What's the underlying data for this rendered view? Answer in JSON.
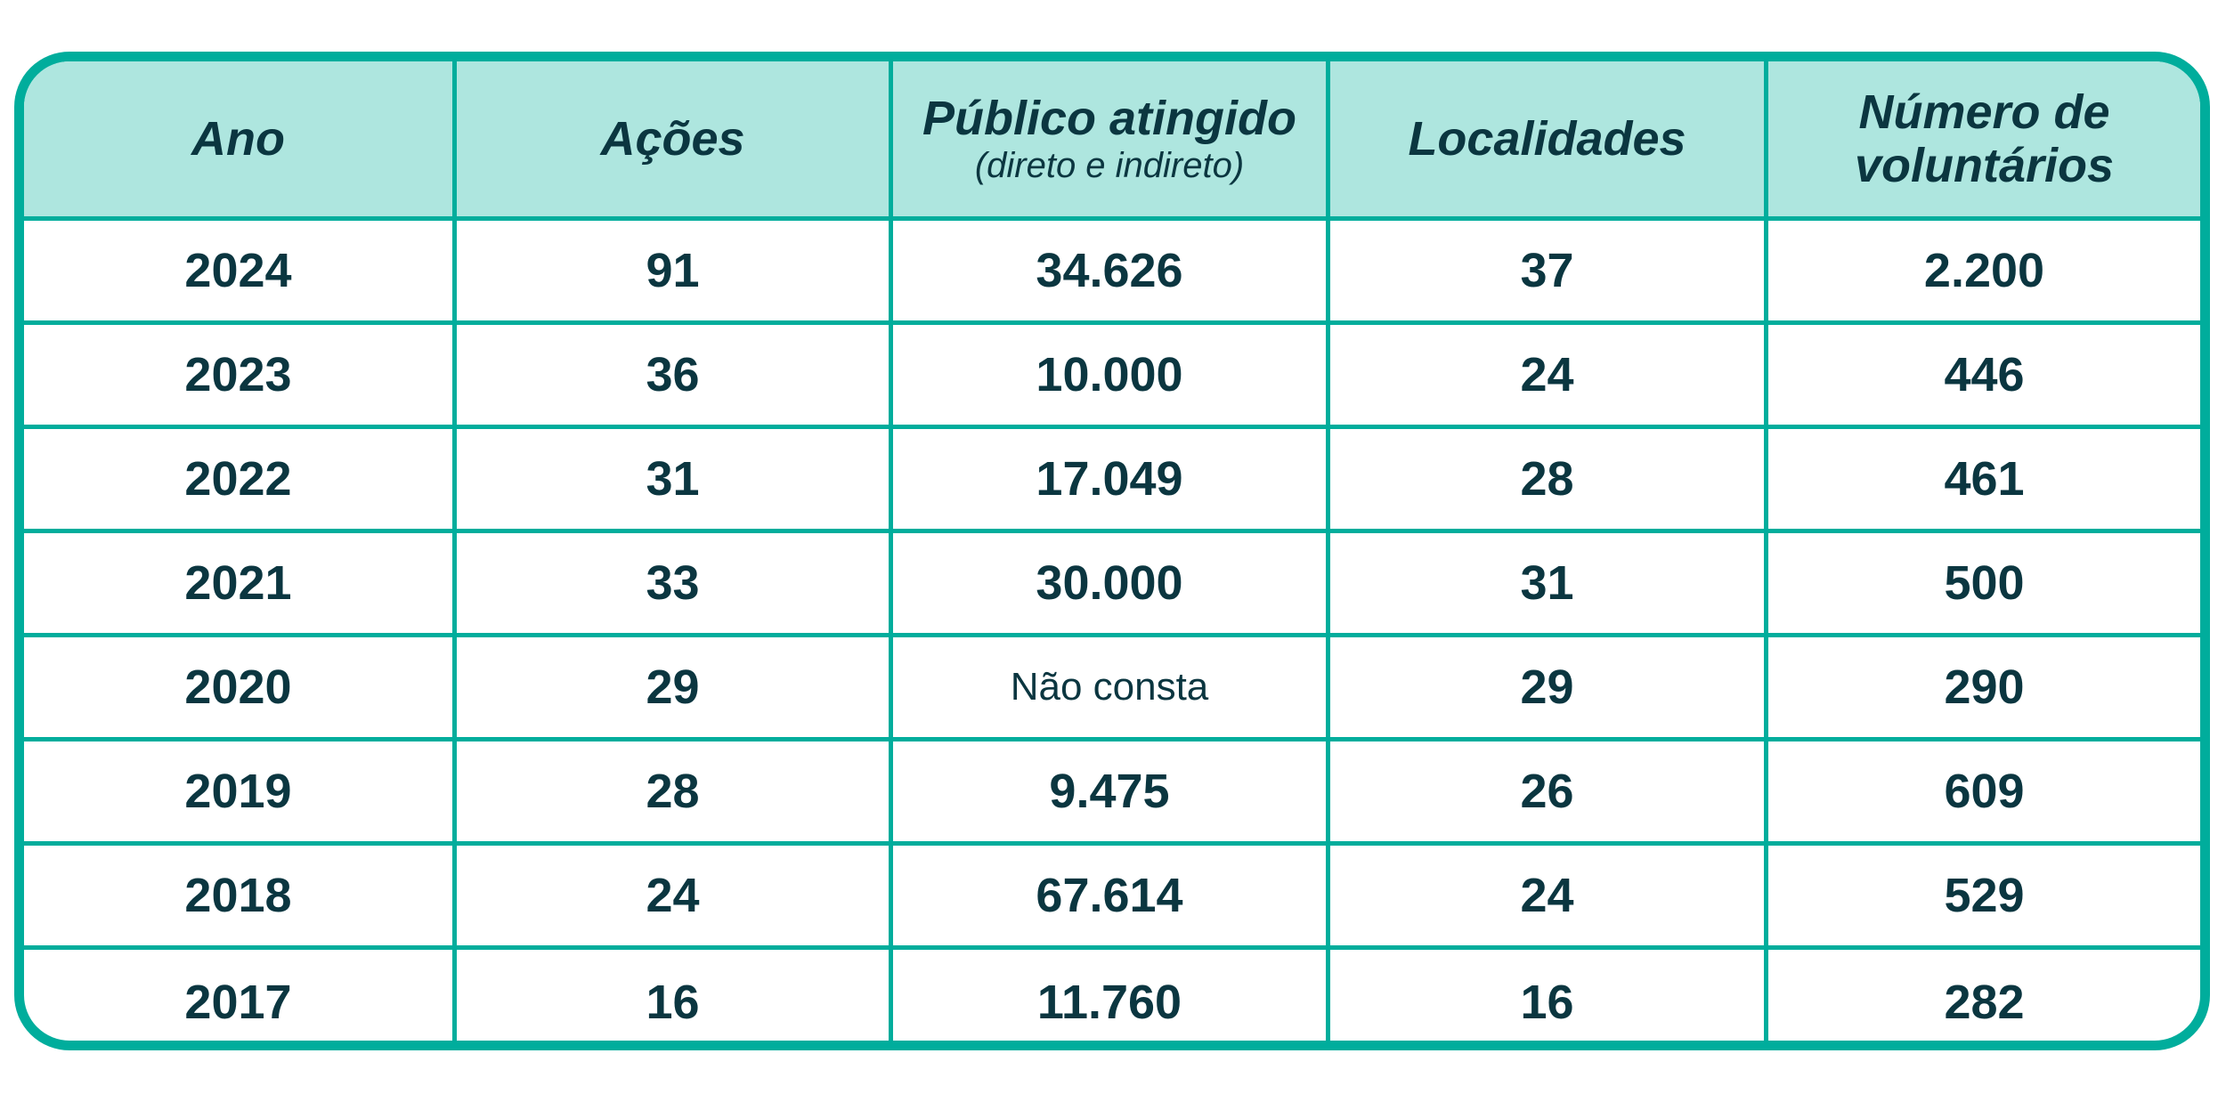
{
  "colors": {
    "border": "#00ad9c",
    "header_bg": "#aee6df",
    "text": "#0b3640"
  },
  "headers": [
    {
      "label": "Ano"
    },
    {
      "label": "Ações"
    },
    {
      "label": "Público atingido",
      "sub": "(direto e indireto)"
    },
    {
      "label": "Localidades"
    },
    {
      "label": "Número de voluntários"
    }
  ],
  "rows": [
    [
      "2024",
      "91",
      "34.626",
      "37",
      "2.200"
    ],
    [
      "2023",
      "36",
      "10.000",
      "24",
      "446"
    ],
    [
      "2022",
      "31",
      "17.049",
      "28",
      "461"
    ],
    [
      "2021",
      "33",
      "30.000",
      "31",
      "500"
    ],
    [
      "2020",
      "29",
      "Não consta",
      "29",
      "290"
    ],
    [
      "2019",
      "28",
      "9.475",
      "26",
      "609"
    ],
    [
      "2018",
      "24",
      "67.614",
      "24",
      "529"
    ],
    [
      "2017",
      "16",
      "11.760",
      "16",
      "282"
    ]
  ]
}
